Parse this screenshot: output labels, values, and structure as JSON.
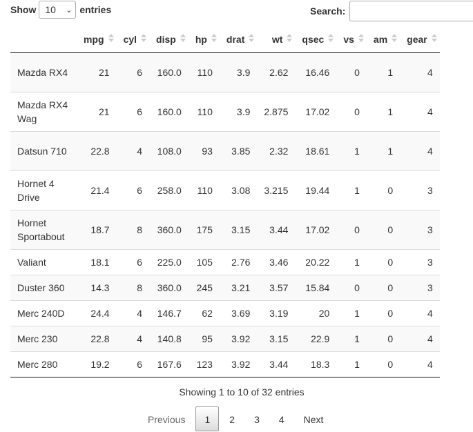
{
  "length_control": {
    "prefix": "Show",
    "value": "10",
    "suffix": "entries"
  },
  "search": {
    "label": "Search:",
    "value": ""
  },
  "table": {
    "columns": [
      "",
      "mpg",
      "cyl",
      "disp",
      "hp",
      "drat",
      "wt",
      "qsec",
      "vs",
      "am",
      "gear"
    ],
    "rows": [
      [
        "Mazda RX4",
        "21",
        "6",
        "160.0",
        "110",
        "3.9",
        "2.62",
        "16.46",
        "0",
        "1",
        "4"
      ],
      [
        "Mazda RX4 Wag",
        "21",
        "6",
        "160.0",
        "110",
        "3.9",
        "2.875",
        "17.02",
        "0",
        "1",
        "4"
      ],
      [
        "Datsun 710",
        "22.8",
        "4",
        "108.0",
        "93",
        "3.85",
        "2.32",
        "18.61",
        "1",
        "1",
        "4"
      ],
      [
        "Hornet 4 Drive",
        "21.4",
        "6",
        "258.0",
        "110",
        "3.08",
        "3.215",
        "19.44",
        "1",
        "0",
        "3"
      ],
      [
        "Hornet Sportabout",
        "18.7",
        "8",
        "360.0",
        "175",
        "3.15",
        "3.44",
        "17.02",
        "0",
        "0",
        "3"
      ],
      [
        "Valiant",
        "18.1",
        "6",
        "225.0",
        "105",
        "2.76",
        "3.46",
        "20.22",
        "1",
        "0",
        "3"
      ],
      [
        "Duster 360",
        "14.3",
        "8",
        "360.0",
        "245",
        "3.21",
        "3.57",
        "15.84",
        "0",
        "0",
        "3"
      ],
      [
        "Merc 240D",
        "24.4",
        "4",
        "146.7",
        "62",
        "3.69",
        "3.19",
        "20",
        "1",
        "0",
        "4"
      ],
      [
        "Merc 230",
        "22.8",
        "4",
        "140.8",
        "95",
        "3.92",
        "3.15",
        "22.9",
        "1",
        "0",
        "4"
      ],
      [
        "Merc 280",
        "19.2",
        "6",
        "167.6",
        "123",
        "3.92",
        "3.44",
        "18.3",
        "1",
        "0",
        "4"
      ]
    ]
  },
  "info": "Showing 1 to 10 of 32 entries",
  "pagination": {
    "previous": "Previous",
    "pages": [
      "1",
      "2",
      "3",
      "4"
    ],
    "current": "1",
    "next": "Next"
  }
}
